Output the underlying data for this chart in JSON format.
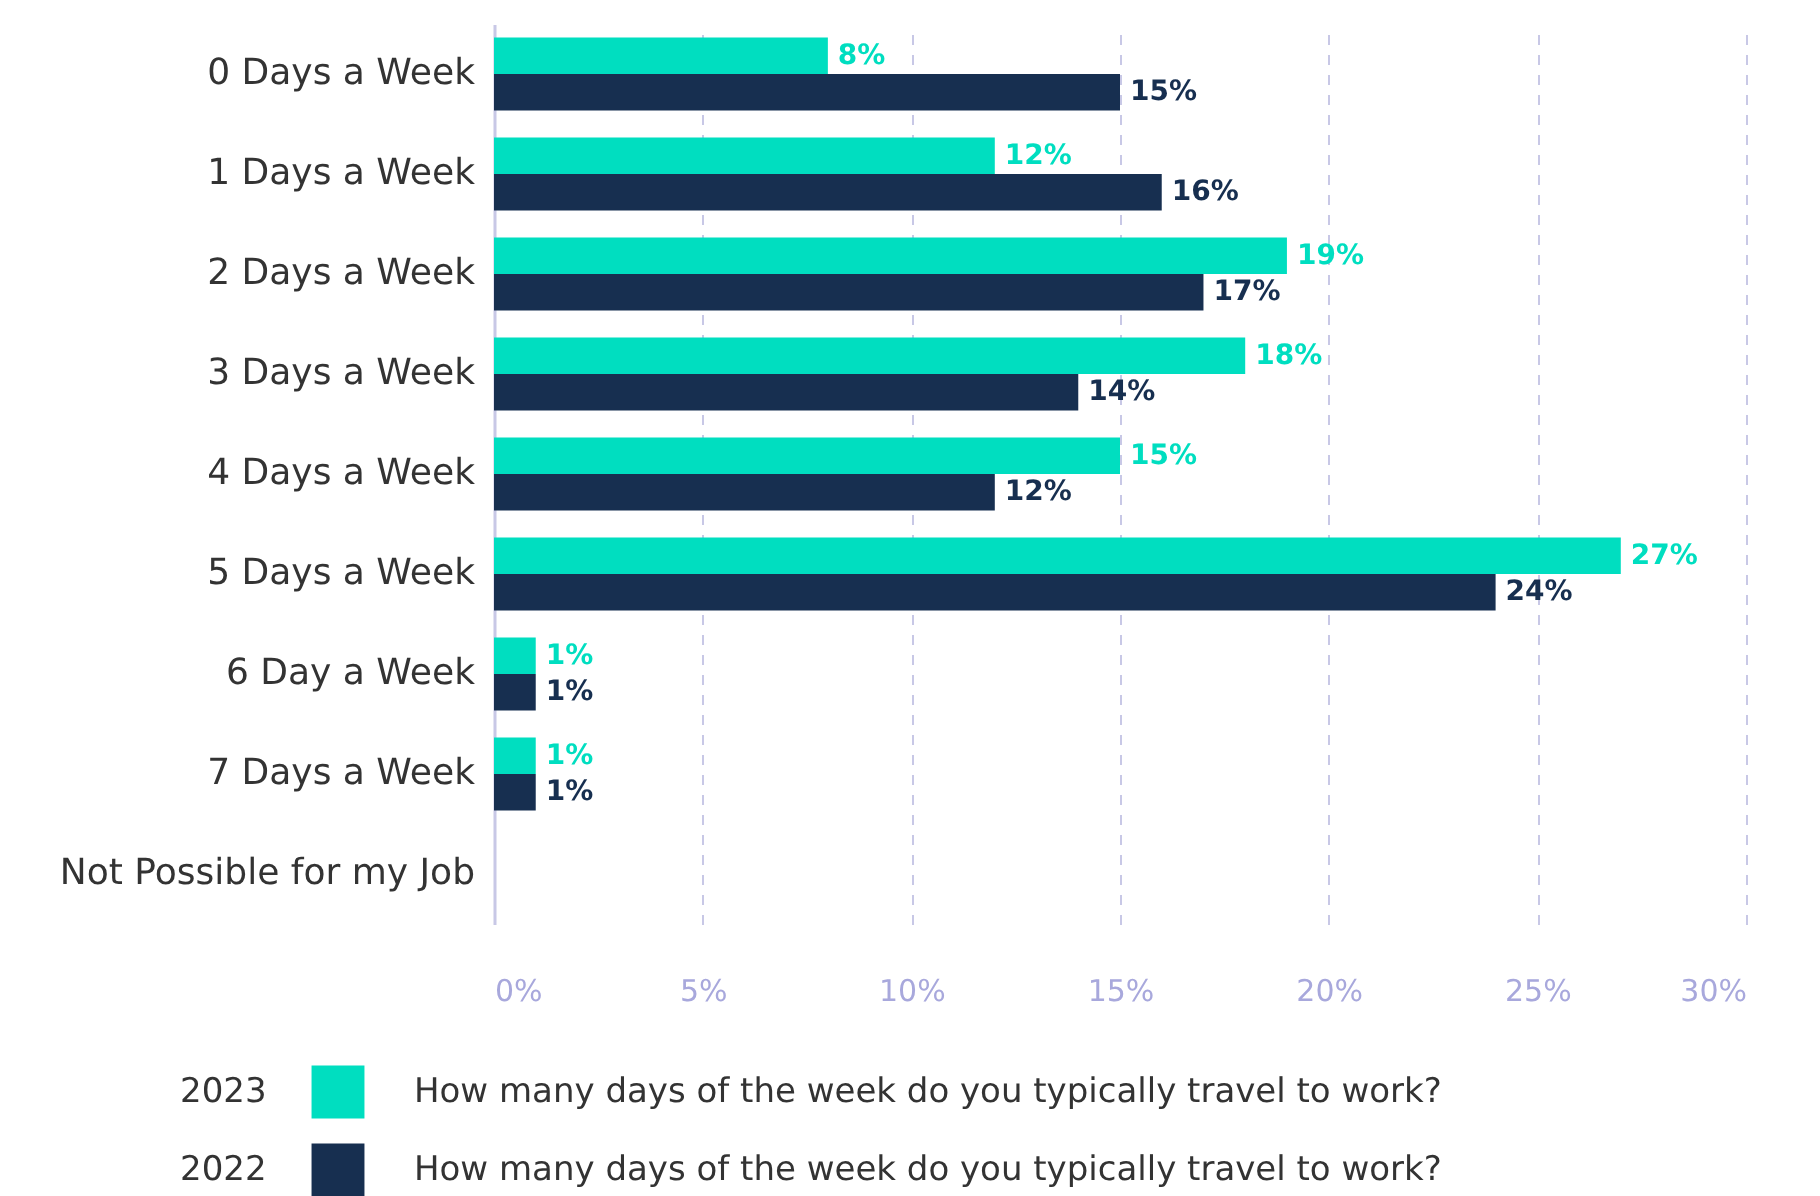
{
  "chart_data": {
    "type": "bar",
    "orientation": "horizontal",
    "categories": [
      "0 Days a Week",
      "1 Days a Week",
      "2 Days a Week",
      "3 Days a Week",
      "4 Days a Week",
      "5 Days a Week",
      "6 Day a Week",
      "7 Days a Week",
      "Not Possible for my Job"
    ],
    "series": [
      {
        "name": "2023",
        "color": "#00dec0",
        "values": [
          8,
          12,
          19,
          18,
          15,
          27,
          1,
          1,
          null
        ],
        "value_labels": [
          "8%",
          "12%",
          "19%",
          "18%",
          "15%",
          "27%",
          "1%",
          "1%",
          null
        ]
      },
      {
        "name": "2022",
        "color": "#172f50",
        "values": [
          15,
          16,
          17,
          14,
          12,
          24,
          1,
          1,
          null
        ],
        "value_labels": [
          "15%",
          "16%",
          "17%",
          "14%",
          "12%",
          "24%",
          "1%",
          "1%",
          null
        ]
      }
    ],
    "xlim": [
      0,
      30
    ],
    "xticks": [
      {
        "value": 0,
        "label": "0%"
      },
      {
        "value": 5,
        "label": "5%"
      },
      {
        "value": 10,
        "label": "10%"
      },
      {
        "value": 15,
        "label": "15%"
      },
      {
        "value": 20,
        "label": "20%"
      },
      {
        "value": 25,
        "label": "25%"
      },
      {
        "value": 30,
        "label": "30%"
      }
    ],
    "grid": "x",
    "legend": "bottom",
    "annotations": [
      "How many days of the week do you typically travel to work?",
      "How many days of the week do you typically travel to work?"
    ]
  }
}
